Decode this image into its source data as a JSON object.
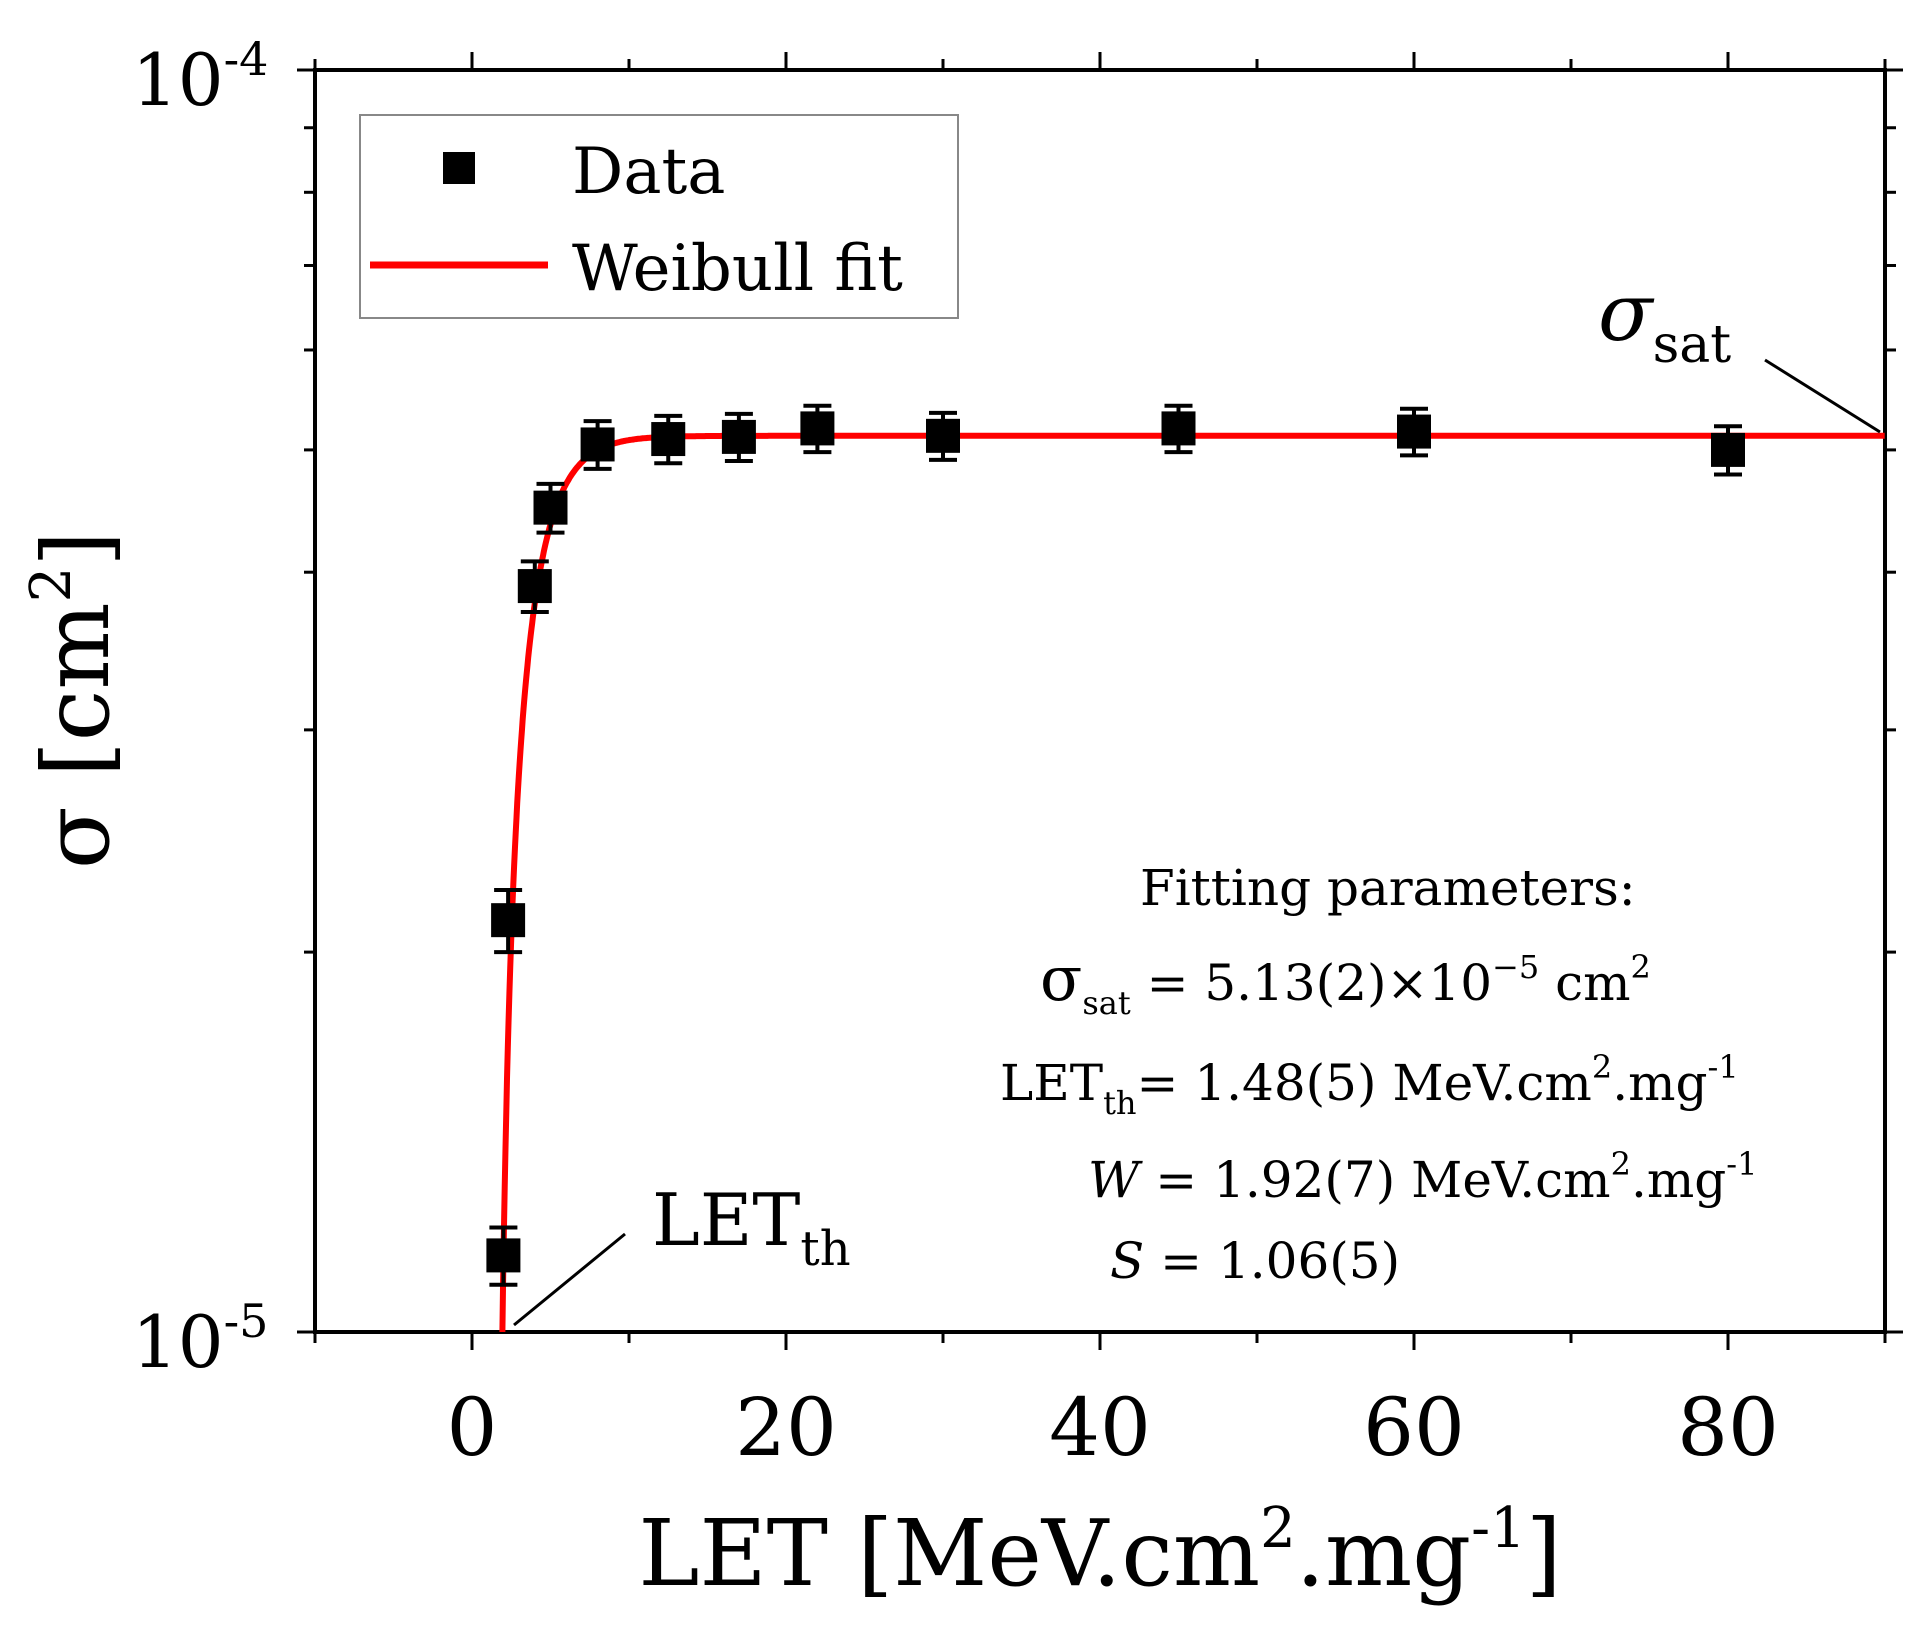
{
  "chart_data": {
    "type": "scatter",
    "title": "",
    "xlabel": "LET [MeV.cm².mg⁻¹]",
    "ylabel": "σ [cm²]",
    "xlim": [
      -10,
      90
    ],
    "ylim": [
      1e-05,
      0.0001
    ],
    "yscale": "log",
    "x_ticks": [
      0,
      20,
      40,
      60,
      80
    ],
    "y_tick_labels": [
      {
        "base": "10",
        "exp": "-4",
        "value": 0.0001
      },
      {
        "base": "10",
        "exp": "-5",
        "value": 1e-05
      }
    ],
    "grid": false,
    "legend_position": "top-left",
    "series": [
      {
        "name": "Data",
        "marker": "square",
        "color": "#000000",
        "x": [
          2,
          2.3,
          4,
          5,
          8,
          12.5,
          17,
          22,
          30,
          45,
          60,
          80
        ],
        "y": [
          1.15e-05,
          2.12e-05,
          3.9e-05,
          4.5e-05,
          5.05e-05,
          5.1e-05,
          5.12e-05,
          5.2e-05,
          5.13e-05,
          5.2e-05,
          5.17e-05,
          5e-05
        ],
        "err_lo": [
          6e-07,
          1.2e-06,
          1.8e-06,
          2e-06,
          2.2e-06,
          2.2e-06,
          2.2e-06,
          2.2e-06,
          2.2e-06,
          2.2e-06,
          2.2e-06,
          2.2e-06
        ],
        "err_hi": [
          6e-07,
          1.2e-06,
          1.8e-06,
          2e-06,
          2.2e-06,
          2.2e-06,
          2.2e-06,
          2.2e-06,
          2.2e-06,
          2.2e-06,
          2.2e-06,
          2.2e-06
        ]
      },
      {
        "name": "Weibull fit",
        "type": "line",
        "color": "#ff0000",
        "model": "weibull",
        "sigma_sat": 5.13e-05,
        "let_th": 1.48,
        "w": 1.92,
        "s": 1.06
      }
    ],
    "annotations": {
      "sigma_sat_label": {
        "main": "σ",
        "sub": "sat"
      },
      "let_th_label": {
        "main": "LET",
        "sub": "th"
      }
    },
    "fit_box": {
      "heading": "Fitting parameters:",
      "sigma_sat": {
        "name": "σ",
        "sub": "sat",
        "eq": " = 5.13(2)×10",
        "exp": "−5",
        "unit": " cm",
        "unit_exp": "2"
      },
      "let_th": {
        "name": "LET",
        "sub": "th",
        "eq": "= 1.48(5) MeV.cm",
        "exp": "2",
        "tail": ".mg",
        "tail_exp": "-1"
      },
      "w": {
        "name": "W",
        "eq": " = 1.92(7) MeV.cm",
        "exp": "2",
        "tail": ".mg",
        "tail_exp": "-1"
      },
      "s": {
        "name": "S",
        "eq": " = 1.06(5)"
      }
    },
    "axis_label_parts": {
      "x": {
        "main": "LET [MeV.cm",
        "exp1": "2",
        "mid": ".mg",
        "exp2": "-1",
        "end": "]"
      },
      "y": {
        "main": "σ [cm",
        "exp": "2",
        "end": "]"
      }
    }
  }
}
